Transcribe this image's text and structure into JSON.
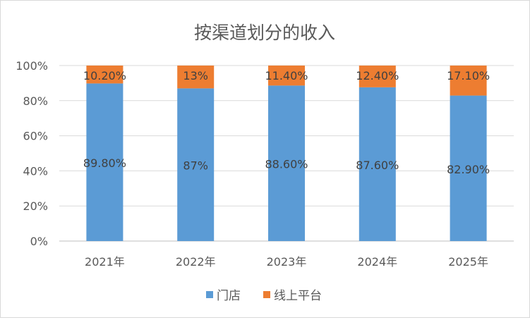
{
  "chart_data": {
    "type": "bar",
    "stacked": "percent",
    "title": "按渠道划分的收入",
    "categories": [
      "2021年",
      "2022年",
      "2023年",
      "2024年",
      "2025年"
    ],
    "series": [
      {
        "name": "门店",
        "values": [
          89.8,
          87,
          88.6,
          87.6,
          82.9
        ],
        "labels": [
          "89.80%",
          "87%",
          "88.60%",
          "87.60%",
          "82.90%"
        ],
        "color": "#5b9bd5"
      },
      {
        "name": "线上平台",
        "values": [
          10.2,
          13,
          11.4,
          12.4,
          17.1
        ],
        "labels": [
          "10.20%",
          "13%",
          "11.40%",
          "12.40%",
          "17.10%"
        ],
        "color": "#ed7d31"
      }
    ],
    "yticks": [
      "0%",
      "20%",
      "40%",
      "60%",
      "80%",
      "100%"
    ],
    "ylim": [
      0,
      100
    ],
    "grid": true,
    "legend": "bottom",
    "xlabel": "",
    "ylabel": ""
  }
}
